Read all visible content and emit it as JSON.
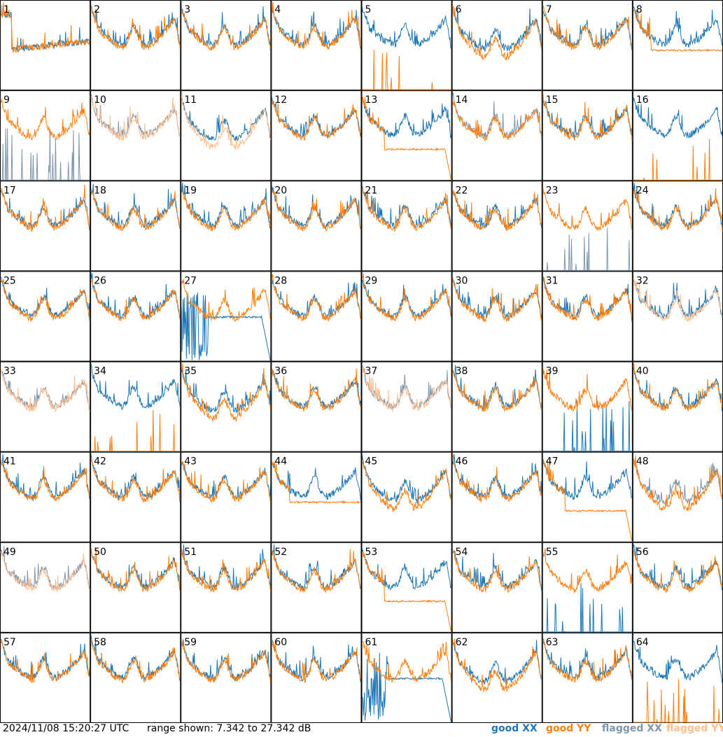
{
  "footer": {
    "timestamp": "2024/11/08 15:20:27 UTC",
    "range_text": "range shown: 7.342 to 27.342 dB"
  },
  "legend": {
    "good_xx": "good XX",
    "good_yy": "good YY",
    "flagged_xx": "flagged XX",
    "flagged_yy": "flagged YY"
  },
  "colors": {
    "good_xx": "#1f77b4",
    "good_yy": "#ff7f0e",
    "flagged_xx": "#7f96ad",
    "flagged_yy": "#ffbf8f",
    "frame": "#000000"
  },
  "chart_data": {
    "type": "line",
    "layout": "8x8 small multiples",
    "ylim": [
      7.342,
      27.342
    ],
    "yunit": "dB",
    "panels": [
      {
        "n": 1,
        "xx": "good",
        "yy": "good",
        "pattern": "high-start-dip"
      },
      {
        "n": 2,
        "xx": "good",
        "yy": "good",
        "pattern": "normal"
      },
      {
        "n": 3,
        "xx": "good",
        "yy": "good",
        "pattern": "normal"
      },
      {
        "n": 4,
        "xx": "good",
        "yy": "good",
        "pattern": "normal"
      },
      {
        "n": 5,
        "xx": "good",
        "yy": "good",
        "pattern": "yy-spikes-only"
      },
      {
        "n": 6,
        "xx": "good",
        "yy": "good",
        "pattern": "deep-bowl"
      },
      {
        "n": 7,
        "xx": "good",
        "yy": "good",
        "pattern": "normal"
      },
      {
        "n": 8,
        "xx": "good",
        "yy": "good",
        "pattern": "flat-plateau"
      },
      {
        "n": 9,
        "xx": "flagged",
        "yy": "good",
        "pattern": "xx-spikes-low"
      },
      {
        "n": 10,
        "xx": "flagged",
        "yy": "flagged",
        "pattern": "normal"
      },
      {
        "n": 11,
        "xx": "good",
        "yy": "flagged",
        "pattern": "deep-bowl"
      },
      {
        "n": 12,
        "xx": "good",
        "yy": "good",
        "pattern": "normal"
      },
      {
        "n": 13,
        "xx": "good",
        "yy": "good",
        "pattern": "yy-dropoff"
      },
      {
        "n": 14,
        "xx": "flagged",
        "yy": "good",
        "pattern": "normal"
      },
      {
        "n": 15,
        "xx": "good",
        "yy": "good",
        "pattern": "normal"
      },
      {
        "n": 16,
        "xx": "good",
        "yy": "good",
        "pattern": "yy-spikes-only"
      },
      {
        "n": 17,
        "xx": "good",
        "yy": "good",
        "pattern": "normal"
      },
      {
        "n": 18,
        "xx": "good",
        "yy": "good",
        "pattern": "normal"
      },
      {
        "n": 19,
        "xx": "good",
        "yy": "good",
        "pattern": "normal"
      },
      {
        "n": 20,
        "xx": "good",
        "yy": "good",
        "pattern": "normal"
      },
      {
        "n": 21,
        "xx": "good",
        "yy": "good",
        "pattern": "normal"
      },
      {
        "n": 22,
        "xx": "good",
        "yy": "good",
        "pattern": "normal"
      },
      {
        "n": 23,
        "xx": "flagged",
        "yy": "good",
        "pattern": "xx-spikes-low"
      },
      {
        "n": 24,
        "xx": "good",
        "yy": "good",
        "pattern": "normal"
      },
      {
        "n": 25,
        "xx": "good",
        "yy": "good",
        "pattern": "normal"
      },
      {
        "n": 26,
        "xx": "good",
        "yy": "good",
        "pattern": "normal"
      },
      {
        "n": 27,
        "xx": "good",
        "yy": "good",
        "pattern": "xx-dropoff"
      },
      {
        "n": 28,
        "xx": "good",
        "yy": "good",
        "pattern": "normal"
      },
      {
        "n": 29,
        "xx": "good",
        "yy": "good",
        "pattern": "normal"
      },
      {
        "n": 30,
        "xx": "good",
        "yy": "good",
        "pattern": "normal"
      },
      {
        "n": 31,
        "xx": "good",
        "yy": "good",
        "pattern": "normal"
      },
      {
        "n": 32,
        "xx": "good",
        "yy": "flagged",
        "pattern": "normal"
      },
      {
        "n": 33,
        "xx": "flagged",
        "yy": "flagged",
        "pattern": "normal"
      },
      {
        "n": 34,
        "xx": "good",
        "yy": "good",
        "pattern": "yy-spikes-only"
      },
      {
        "n": 35,
        "xx": "good",
        "yy": "good",
        "pattern": "deep-bowl"
      },
      {
        "n": 36,
        "xx": "good",
        "yy": "good",
        "pattern": "normal"
      },
      {
        "n": 37,
        "xx": "flagged",
        "yy": "flagged",
        "pattern": "normal"
      },
      {
        "n": 38,
        "xx": "good",
        "yy": "good",
        "pattern": "normal"
      },
      {
        "n": 39,
        "xx": "good",
        "yy": "good",
        "pattern": "xx-spikes-low"
      },
      {
        "n": 40,
        "xx": "good",
        "yy": "good",
        "pattern": "normal"
      },
      {
        "n": 41,
        "xx": "good",
        "yy": "good",
        "pattern": "normal"
      },
      {
        "n": 42,
        "xx": "good",
        "yy": "good",
        "pattern": "normal"
      },
      {
        "n": 43,
        "xx": "good",
        "yy": "good",
        "pattern": "normal"
      },
      {
        "n": 44,
        "xx": "good",
        "yy": "good",
        "pattern": "flat-plateau"
      },
      {
        "n": 45,
        "xx": "good",
        "yy": "good",
        "pattern": "deep-bowl"
      },
      {
        "n": 46,
        "xx": "good",
        "yy": "good",
        "pattern": "normal"
      },
      {
        "n": 47,
        "xx": "good",
        "yy": "good",
        "pattern": "yy-dropoff"
      },
      {
        "n": 48,
        "xx": "flagged",
        "yy": "good",
        "pattern": "deep-bowl"
      },
      {
        "n": 49,
        "xx": "flagged",
        "yy": "flagged",
        "pattern": "normal"
      },
      {
        "n": 50,
        "xx": "good",
        "yy": "good",
        "pattern": "normal"
      },
      {
        "n": 51,
        "xx": "good",
        "yy": "good",
        "pattern": "normal"
      },
      {
        "n": 52,
        "xx": "good",
        "yy": "good",
        "pattern": "normal"
      },
      {
        "n": 53,
        "xx": "good",
        "yy": "good",
        "pattern": "yy-dropoff"
      },
      {
        "n": 54,
        "xx": "good",
        "yy": "good",
        "pattern": "normal"
      },
      {
        "n": 55,
        "xx": "good",
        "yy": "good",
        "pattern": "xx-spikes-low"
      },
      {
        "n": 56,
        "xx": "good",
        "yy": "good",
        "pattern": "normal"
      },
      {
        "n": 57,
        "xx": "good",
        "yy": "good",
        "pattern": "normal"
      },
      {
        "n": 58,
        "xx": "good",
        "yy": "good",
        "pattern": "normal"
      },
      {
        "n": 59,
        "xx": "good",
        "yy": "good",
        "pattern": "normal"
      },
      {
        "n": 60,
        "xx": "good",
        "yy": "good",
        "pattern": "normal"
      },
      {
        "n": 61,
        "xx": "good",
        "yy": "good",
        "pattern": "xx-dropoff"
      },
      {
        "n": 62,
        "xx": "good",
        "yy": "good",
        "pattern": "deep-bowl"
      },
      {
        "n": 63,
        "xx": "good",
        "yy": "good",
        "pattern": "normal"
      },
      {
        "n": 64,
        "xx": "good",
        "yy": "good",
        "pattern": "yy-spikes-only"
      }
    ]
  }
}
